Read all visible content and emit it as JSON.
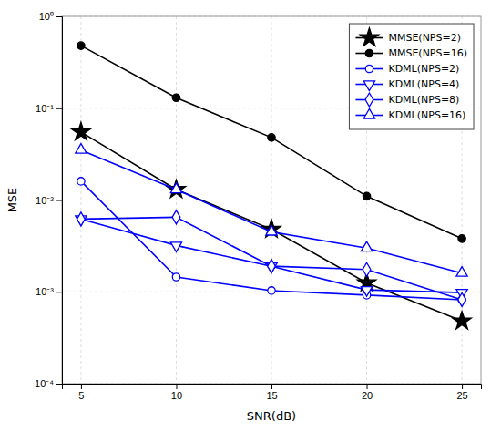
{
  "chart_data": {
    "type": "line",
    "xlabel": "SNR(dB)",
    "ylabel": "MSE",
    "x": [
      5,
      10,
      15,
      20,
      25
    ],
    "series": [
      {
        "name": "MMSE(NPS=2)",
        "color": "#000000",
        "marker": "star",
        "values": [
          0.055,
          0.013,
          0.0048,
          0.00125,
          0.00048
        ]
      },
      {
        "name": "MMSE(NPS=16)",
        "color": "#000000",
        "marker": "circle",
        "values": [
          0.48,
          0.13,
          0.048,
          0.011,
          0.0038
        ]
      },
      {
        "name": "KDML(NPS=2)",
        "color": "#0000ff",
        "marker": "circle-open",
        "values": [
          0.016,
          0.00145,
          0.00103,
          0.00092,
          0.00082
        ]
      },
      {
        "name": "KDML(NPS=4)",
        "color": "#0000ff",
        "marker": "triangle-down-open",
        "values": [
          0.0062,
          0.0032,
          0.0019,
          0.00105,
          0.00098
        ]
      },
      {
        "name": "KDML(NPS=8)",
        "color": "#0000ff",
        "marker": "diamond-open",
        "values": [
          0.0062,
          0.0065,
          0.0019,
          0.00175,
          0.00082
        ]
      },
      {
        "name": "KDML(NPS=16)",
        "color": "#0000ff",
        "marker": "triangle-up-open",
        "values": [
          0.035,
          0.013,
          0.0045,
          0.003,
          0.0016
        ]
      }
    ],
    "xlim": [
      4,
      26
    ],
    "xticks": [
      5,
      10,
      15,
      20,
      25
    ],
    "ylim": [
      0.0001,
      1
    ],
    "yticks": [
      {
        "value": 0.0001,
        "label": "10⁻⁴"
      },
      {
        "value": 0.001,
        "label": "10⁻³"
      },
      {
        "value": 0.01,
        "label": "10⁻²"
      },
      {
        "value": 0.1,
        "label": "10⁻¹"
      },
      {
        "value": 1,
        "label": "10⁰"
      }
    ],
    "log": "y",
    "grid": true,
    "legend": "upper right"
  }
}
